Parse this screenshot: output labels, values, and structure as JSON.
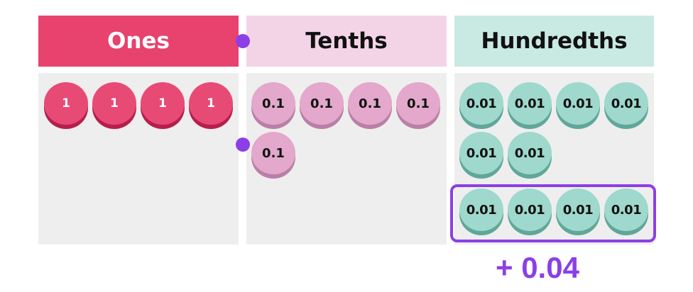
{
  "colors": {
    "ones_header": "#e8426f",
    "tenths_header": "#f3d4e7",
    "hundredths_header": "#c9e9e3",
    "accent": "#8c3fe6"
  },
  "columns": {
    "ones": {
      "label": "Ones",
      "counters": [
        "1",
        "1",
        "1",
        "1"
      ]
    },
    "tenths": {
      "label": "Tenths",
      "counters": [
        "0.1",
        "0.1",
        "0.1",
        "0.1",
        "0.1"
      ]
    },
    "hundredths": {
      "label": "Hundredths",
      "counters": [
        "0.01",
        "0.01",
        "0.01",
        "0.01",
        "0.01",
        "0.01"
      ],
      "added_counters": [
        "0.01",
        "0.01",
        "0.01",
        "0.01"
      ]
    }
  },
  "result_label": "+ 0.04"
}
